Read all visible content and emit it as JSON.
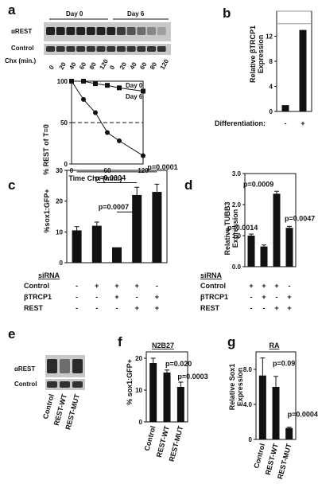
{
  "panel_letters": [
    "a",
    "b",
    "c",
    "d",
    "e",
    "f",
    "g"
  ],
  "panel_a": {
    "blot_rows": [
      "αREST",
      "Control"
    ],
    "day_labels": [
      "Day 0",
      "Day 6"
    ],
    "chx_label": "Chx (min.)",
    "chx_times": [
      "0",
      "20",
      "40",
      "60",
      "80",
      "120",
      "0",
      "20",
      "40",
      "60",
      "80",
      "120"
    ]
  },
  "panel_e": {
    "blot_rows": [
      "αREST",
      "Control"
    ],
    "lanes": [
      "Control",
      "REST-WT",
      "REST-MUT"
    ]
  },
  "siRNA_table": {
    "title": "siRNA",
    "rows": [
      {
        "label": "Control",
        "values": [
          "-",
          "+",
          "+",
          "+",
          "-"
        ]
      },
      {
        "label": "βTRCP1",
        "values": [
          "-",
          "-",
          "+",
          "-",
          "+"
        ]
      },
      {
        "label": "REST",
        "values": [
          "-",
          "-",
          "-",
          "+",
          "+"
        ]
      }
    ],
    "rows_d": [
      {
        "label": "Control",
        "values": [
          "+",
          "+",
          "+",
          "-"
        ]
      },
      {
        "label": "βTRCP1",
        "values": [
          "-",
          "+",
          "-",
          "+"
        ]
      },
      {
        "label": "REST",
        "values": [
          "-",
          "-",
          "+",
          "+"
        ]
      }
    ]
  },
  "chart_data": [
    {
      "id": "a",
      "type": "line",
      "xlabel": "Time Chx (min.)",
      "ylabel": "% REST of T=0",
      "xlim": [
        0,
        120
      ],
      "ylim": [
        0,
        100
      ],
      "xticks": [
        0,
        60,
        120
      ],
      "yticks": [
        0,
        50,
        100
      ],
      "series": [
        {
          "name": "Day 0",
          "marker": "square",
          "x": [
            0,
            20,
            40,
            60,
            80,
            120
          ],
          "y": [
            100,
            100,
            97,
            95,
            92,
            88
          ]
        },
        {
          "name": "Day 6",
          "marker": "circle",
          "x": [
            0,
            20,
            40,
            60,
            80,
            120
          ],
          "y": [
            100,
            78,
            62,
            38,
            28,
            10
          ]
        }
      ],
      "reference_line": 50
    },
    {
      "id": "b",
      "type": "bar",
      "ylabel": "Relative βTRCP1 Expression",
      "ylim": [
        0,
        16
      ],
      "yticks": [
        0,
        4,
        8,
        12
      ],
      "categories": [
        "-",
        "+"
      ],
      "category_title": "Differentiation:",
      "values": [
        1,
        13
      ]
    },
    {
      "id": "c",
      "type": "bar",
      "ylabel": "%sox1:GFP+",
      "ylim": [
        0,
        30
      ],
      "yticks": [
        0,
        10,
        20,
        30
      ],
      "values": [
        10.5,
        12,
        5,
        22,
        23
      ],
      "errors": [
        1.2,
        1.2,
        0,
        2.5,
        2.5
      ],
      "annotations": [
        "p=0.0004",
        "p=0.0001",
        "p=0.0007"
      ]
    },
    {
      "id": "d",
      "type": "bar",
      "ylabel": "Relative TUBB3 Expression",
      "ylim": [
        0,
        3.0
      ],
      "yticks": [
        0,
        1.0,
        2.0,
        3.0
      ],
      "values": [
        1.0,
        0.65,
        2.35,
        1.25
      ],
      "errors": [
        0.05,
        0.05,
        0.08,
        0.05
      ],
      "annotations": [
        "p=0.0009",
        "p=0.0014",
        "p=0.0047"
      ]
    },
    {
      "id": "f",
      "type": "bar",
      "title": "N2B27",
      "ylabel": "% sox1:GFP+",
      "ylim": [
        0,
        22
      ],
      "yticks": [
        0,
        10,
        20
      ],
      "categories": [
        "Control",
        "REST-WT",
        "REST-MUT"
      ],
      "values": [
        18.5,
        15.5,
        11
      ],
      "errors": [
        1.5,
        0.8,
        1.5
      ],
      "annotations": [
        "p=0.020",
        "p=0.0003"
      ]
    },
    {
      "id": "g",
      "type": "bar",
      "title": "RA",
      "ylabel": "Relative Sox1 Expression",
      "ylim": [
        0,
        10
      ],
      "yticks": [
        0,
        4.0,
        8.0
      ],
      "categories": [
        "Control",
        "REST-WT",
        "REST-MUT"
      ],
      "values": [
        7.3,
        6.0,
        1.3
      ],
      "errors": [
        2.0,
        1.2,
        0.1
      ],
      "annotations": [
        "p=0.09",
        "p=0.0004"
      ]
    }
  ]
}
